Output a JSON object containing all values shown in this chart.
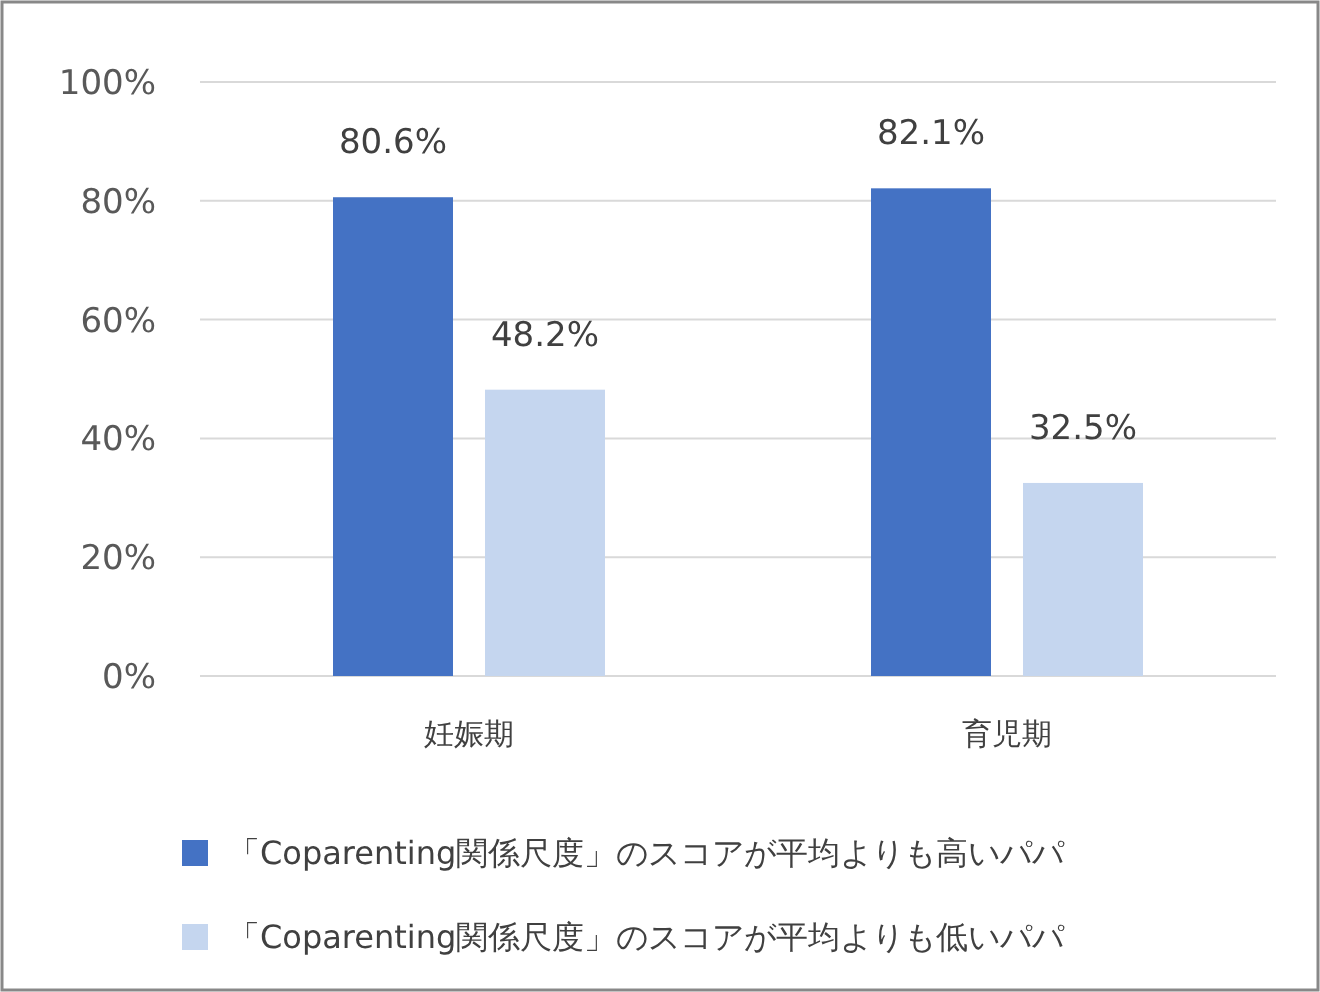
{
  "chart_data": {
    "type": "bar",
    "categories": [
      "妊娠期",
      "育児期"
    ],
    "series": [
      {
        "name": "「Coparenting関係尺度」のスコアが平均よりも高いパパ",
        "color": "#4472c4",
        "values": [
          80.6,
          82.1
        ],
        "value_labels": [
          "80.6%",
          "82.1%"
        ]
      },
      {
        "name": "「Coparenting関係尺度」のスコアが平均よりも低いパパ",
        "color": "#c5d6ef",
        "values": [
          48.2,
          32.5
        ],
        "value_labels": [
          "48.2%",
          "32.5%"
        ]
      }
    ],
    "ylim": [
      0,
      100
    ],
    "yticks": [
      {
        "value": 0,
        "label": "0%"
      },
      {
        "value": 20,
        "label": "20%"
      },
      {
        "value": 40,
        "label": "40%"
      },
      {
        "value": 60,
        "label": "60%"
      },
      {
        "value": 80,
        "label": "80%"
      },
      {
        "value": 100,
        "label": "100%"
      }
    ],
    "grid": "y",
    "legend": "bottom"
  }
}
